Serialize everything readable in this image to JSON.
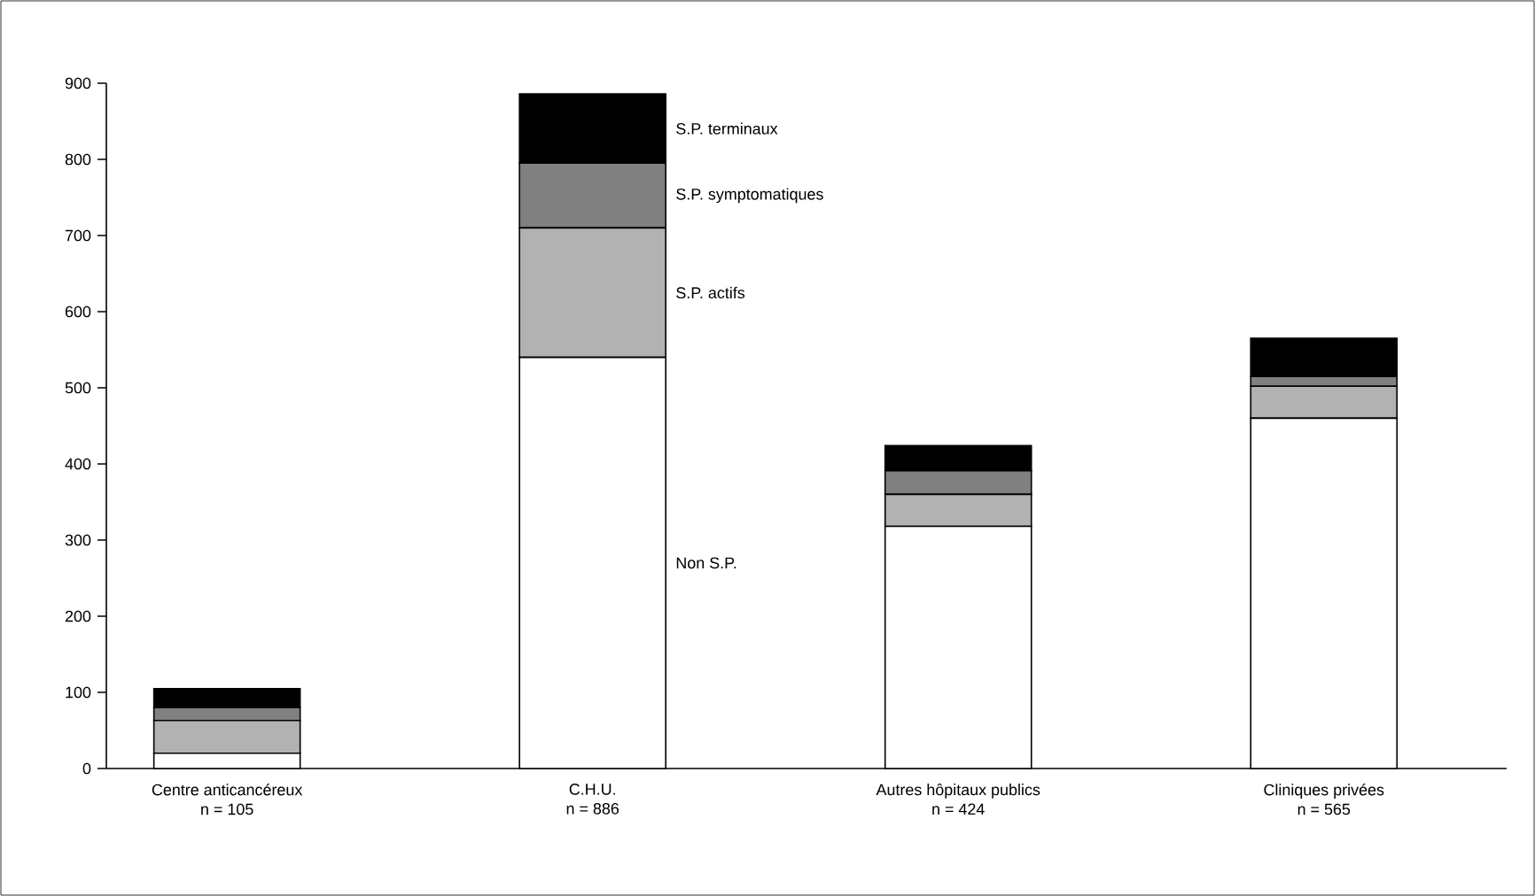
{
  "chart_data": {
    "type": "bar",
    "stacked": true,
    "categories": [
      "Centre anticancéreux",
      "C.H.U.",
      "Autres hôpitaux publics",
      "Cliniques privées"
    ],
    "totals": [
      "n = 105",
      "n = 886",
      "n = 424",
      "n = 565"
    ],
    "series": [
      {
        "name": "Non S.P.",
        "color": "#ffffff",
        "values": [
          20,
          540,
          318,
          460
        ]
      },
      {
        "name": "S.P. actifs",
        "color": "#b2b2b2",
        "values": [
          43,
          170,
          42,
          42
        ]
      },
      {
        "name": "S.P. symptomatiques",
        "color": "#808080",
        "values": [
          17,
          85,
          31,
          13
        ]
      },
      {
        "name": "S.P. terminaux",
        "color": "#000000",
        "values": [
          25,
          91,
          33,
          50
        ]
      }
    ],
    "ylim": [
      0,
      900
    ],
    "yticks": [
      0,
      100,
      200,
      300,
      400,
      500,
      600,
      700,
      800,
      900
    ],
    "grid": false
  }
}
